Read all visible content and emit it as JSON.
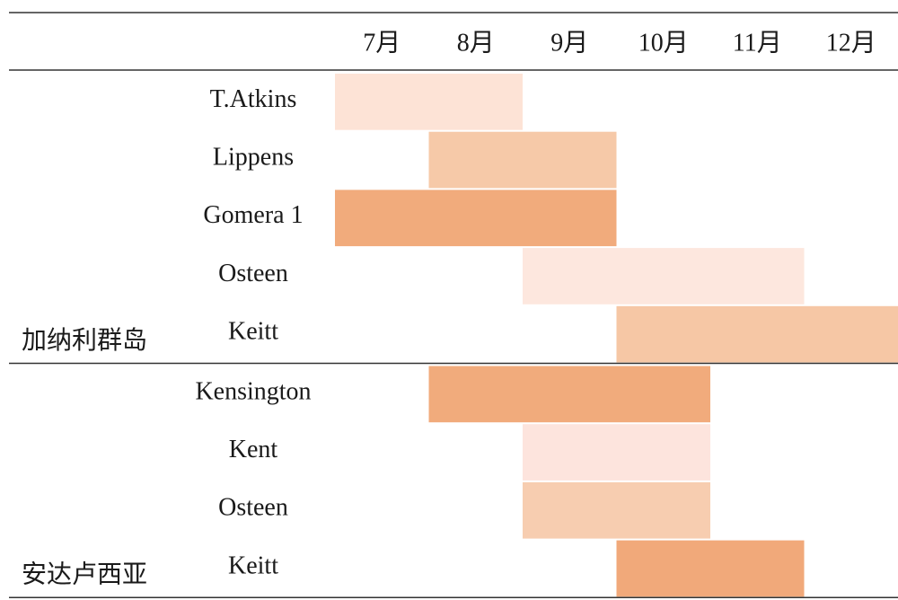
{
  "chart_data": {
    "type": "gantt",
    "xlim": [
      7,
      13
    ],
    "xticks": [
      {
        "value": 7.5,
        "label": "7月"
      },
      {
        "value": 8.5,
        "label": "8月"
      },
      {
        "value": 9.5,
        "label": "9月"
      },
      {
        "value": 10.5,
        "label": "10月"
      },
      {
        "value": 11.5,
        "label": "11月"
      },
      {
        "value": 12.5,
        "label": "12月"
      }
    ],
    "groups": [
      {
        "name": "加纳利群岛",
        "rows": [
          {
            "name": "T.Atkins",
            "start": 7,
            "end": 9,
            "color": "#fde3d6"
          },
          {
            "name": "Lippens",
            "start": 8,
            "end": 10,
            "color": "#f6c9a8"
          },
          {
            "name": "Gomera 1",
            "start": 7,
            "end": 10,
            "color": "#f1ab7c"
          },
          {
            "name": "Osteen",
            "start": 9,
            "end": 12,
            "color": "#fde7de"
          },
          {
            "name": "Keitt",
            "start": 10,
            "end": 13,
            "color": "#f6c7a5"
          }
        ]
      },
      {
        "name": "安达卢西亚",
        "rows": [
          {
            "name": "Kensington",
            "start": 8,
            "end": 11,
            "color": "#f1ab7c"
          },
          {
            "name": "Kent",
            "start": 9,
            "end": 11,
            "color": "#fde4dd"
          },
          {
            "name": "Osteen",
            "start": 9,
            "end": 11,
            "color": "#f7cdb0"
          },
          {
            "name": "Keitt",
            "start": 10,
            "end": 12,
            "color": "#f1a97a"
          }
        ]
      }
    ]
  }
}
